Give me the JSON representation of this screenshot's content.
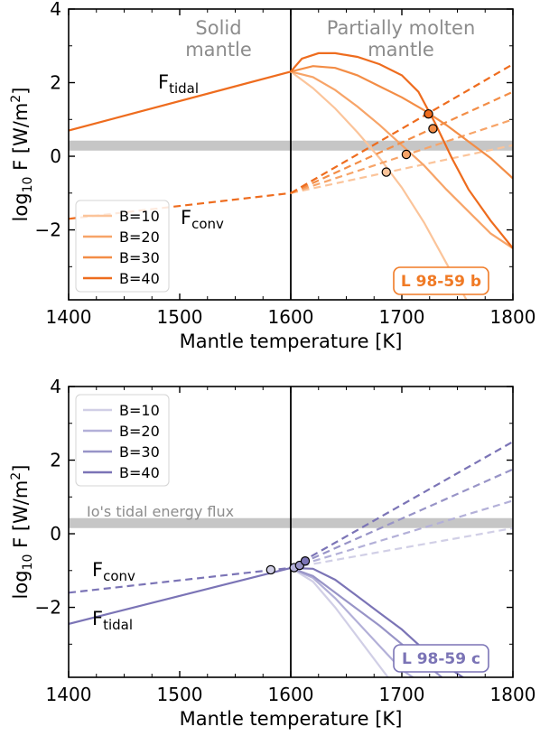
{
  "chart_data": [
    {
      "type": "line",
      "panel": "top",
      "planet_label": "L 98-59 b",
      "accent_color": "#f07a25",
      "xlabel": "Mantle temperature [K]",
      "ylabel_base": "log",
      "ylabel_sub": "10",
      "ylabel_mid": " F [W/m",
      "ylabel_sup": "2",
      "ylabel_end": "]",
      "xlim": [
        1400,
        1800
      ],
      "ylim": [
        -3.9,
        4
      ],
      "xticks": [
        1400,
        1500,
        1600,
        1700,
        1800
      ],
      "xtick_labels": [
        "1400",
        "1500",
        "1600",
        "1700",
        "1800"
      ],
      "yticks": [
        -2,
        0,
        2,
        4
      ],
      "ytick_labels": [
        "−2",
        "0",
        "2",
        "4"
      ],
      "vline_x": 1600,
      "io_flux": 0.29,
      "region_solid": [
        "Solid",
        "mantle"
      ],
      "region_molten": [
        "Partially molten",
        "mantle"
      ],
      "ftidal_label": {
        "main": "F",
        "sub": "tidal"
      },
      "fconv_label": {
        "main": "F",
        "sub": "conv"
      },
      "legend": [
        "B=10",
        "B=20",
        "B=30",
        "B=40"
      ],
      "series_colors": [
        "#fbc49a",
        "#f7a468",
        "#f38d46",
        "#ee6c1e"
      ],
      "tidal_solid": {
        "x": [
          1400,
          1600
        ],
        "y": [
          0.7,
          2.3
        ]
      },
      "conv_solid": {
        "x": [
          1400,
          1600
        ],
        "y": [
          -1.7,
          -1.0
        ]
      },
      "series": [
        {
          "name": "B=10",
          "tidal": {
            "x": [
              1600,
              1620,
              1640,
              1660,
              1680,
              1700,
              1720,
              1740,
              1760
            ],
            "y": [
              2.3,
              1.85,
              1.3,
              0.65,
              -0.05,
              -0.85,
              -1.8,
              -2.9,
              -4.0
            ]
          },
          "conv": {
            "x": [
              1600,
              1800
            ],
            "y": [
              -1.0,
              0.3
            ]
          }
        },
        {
          "name": "B=20",
          "tidal": {
            "x": [
              1600,
              1620,
              1640,
              1660,
              1680,
              1700,
              1720,
              1740,
              1760,
              1780,
              1800
            ],
            "y": [
              2.3,
              2.15,
              1.8,
              1.35,
              0.85,
              0.3,
              -0.25,
              -0.9,
              -1.5,
              -2.1,
              -2.5
            ]
          },
          "conv": {
            "x": [
              1600,
              1800
            ],
            "y": [
              -1.0,
              1.0
            ]
          }
        },
        {
          "name": "B=30",
          "tidal": {
            "x": [
              1600,
              1620,
              1640,
              1660,
              1680,
              1700,
              1720,
              1740,
              1760,
              1780,
              1800
            ],
            "y": [
              2.3,
              2.45,
              2.4,
              2.2,
              1.9,
              1.6,
              1.25,
              0.85,
              0.4,
              -0.05,
              -0.6
            ]
          },
          "conv": {
            "x": [
              1600,
              1800
            ],
            "y": [
              -1.0,
              1.75
            ]
          }
        },
        {
          "name": "B=40",
          "tidal": {
            "x": [
              1600,
              1610,
              1625,
              1640,
              1660,
              1680,
              1700,
              1715,
              1730,
              1745,
              1760,
              1780,
              1800
            ],
            "y": [
              2.3,
              2.65,
              2.8,
              2.8,
              2.7,
              2.5,
              2.2,
              1.75,
              0.9,
              -0.05,
              -0.9,
              -1.75,
              -2.5
            ]
          },
          "conv": {
            "x": [
              1600,
              1800
            ],
            "y": [
              -1.0,
              2.5
            ]
          }
        }
      ],
      "equilibrium_points": [
        {
          "x": 1686,
          "y": -0.43
        },
        {
          "x": 1704,
          "y": 0.05
        },
        {
          "x": 1728,
          "y": 0.75
        },
        {
          "x": 1724,
          "y": 1.15
        }
      ]
    },
    {
      "type": "line",
      "panel": "bottom",
      "planet_label": "L 98-59 c",
      "accent_color": "#7b74b6",
      "xlabel": "Mantle temperature [K]",
      "ylabel_base": "log",
      "ylabel_sub": "10",
      "ylabel_mid": " F [W/m",
      "ylabel_sup": "2",
      "ylabel_end": "]",
      "xlim": [
        1400,
        1800
      ],
      "ylim": [
        -3.9,
        4
      ],
      "xticks": [
        1400,
        1500,
        1600,
        1700,
        1800
      ],
      "xtick_labels": [
        "1400",
        "1500",
        "1600",
        "1700",
        "1800"
      ],
      "yticks": [
        -2,
        0,
        2,
        4
      ],
      "ytick_labels": [
        "−2",
        "0",
        "2",
        "4"
      ],
      "vline_x": 1600,
      "io_flux": 0.29,
      "io_label": "Io's tidal energy flux",
      "ftidal_label": {
        "main": "F",
        "sub": "tidal"
      },
      "fconv_label": {
        "main": "F",
        "sub": "conv"
      },
      "legend": [
        "B=10",
        "B=20",
        "B=30",
        "B=40"
      ],
      "series_colors": [
        "#d1cfe6",
        "#b3b0d8",
        "#9894c7",
        "#7b74b6"
      ],
      "tidal_solid": {
        "x": [
          1400,
          1600
        ],
        "y": [
          -2.45,
          -0.93
        ]
      },
      "conv_solid": {
        "x": [
          1400,
          1600
        ],
        "y": [
          -1.6,
          -0.93
        ]
      },
      "series": [
        {
          "name": "B=10",
          "tidal": {
            "x": [
              1600,
              1620,
              1640,
              1660,
              1680,
              1690
            ],
            "y": [
              -0.93,
              -1.3,
              -2.0,
              -2.8,
              -3.6,
              -4.0
            ]
          },
          "conv": {
            "x": [
              1600,
              1800
            ],
            "y": [
              -0.93,
              0.15
            ]
          }
        },
        {
          "name": "B=20",
          "tidal": {
            "x": [
              1600,
              1620,
              1640,
              1660,
              1680,
              1700,
              1715
            ],
            "y": [
              -0.93,
              -1.2,
              -1.75,
              -2.4,
              -3.05,
              -3.7,
              -4.0
            ]
          },
          "conv": {
            "x": [
              1600,
              1800
            ],
            "y": [
              -0.93,
              0.9
            ]
          }
        },
        {
          "name": "B=30",
          "tidal": {
            "x": [
              1600,
              1620,
              1640,
              1660,
              1680,
              1700,
              1720,
              1740
            ],
            "y": [
              -0.93,
              -1.15,
              -1.6,
              -2.05,
              -2.5,
              -3.0,
              -3.5,
              -4.0
            ]
          },
          "conv": {
            "x": [
              1600,
              1800
            ],
            "y": [
              -0.93,
              1.75
            ]
          }
        },
        {
          "name": "B=40",
          "tidal": {
            "x": [
              1600,
              1620,
              1640,
              1660,
              1680,
              1700,
              1720,
              1740,
              1760
            ],
            "y": [
              -0.93,
              -0.95,
              -1.25,
              -1.7,
              -2.15,
              -2.6,
              -3.15,
              -3.6,
              -4.0
            ]
          },
          "conv": {
            "x": [
              1600,
              1800
            ],
            "y": [
              -0.93,
              2.5
            ]
          }
        }
      ],
      "equilibrium_points": [
        {
          "x": 1582,
          "y": -0.98
        },
        {
          "x": 1603,
          "y": -0.92
        },
        {
          "x": 1608,
          "y": -0.86
        },
        {
          "x": 1613,
          "y": -0.74
        }
      ]
    }
  ]
}
